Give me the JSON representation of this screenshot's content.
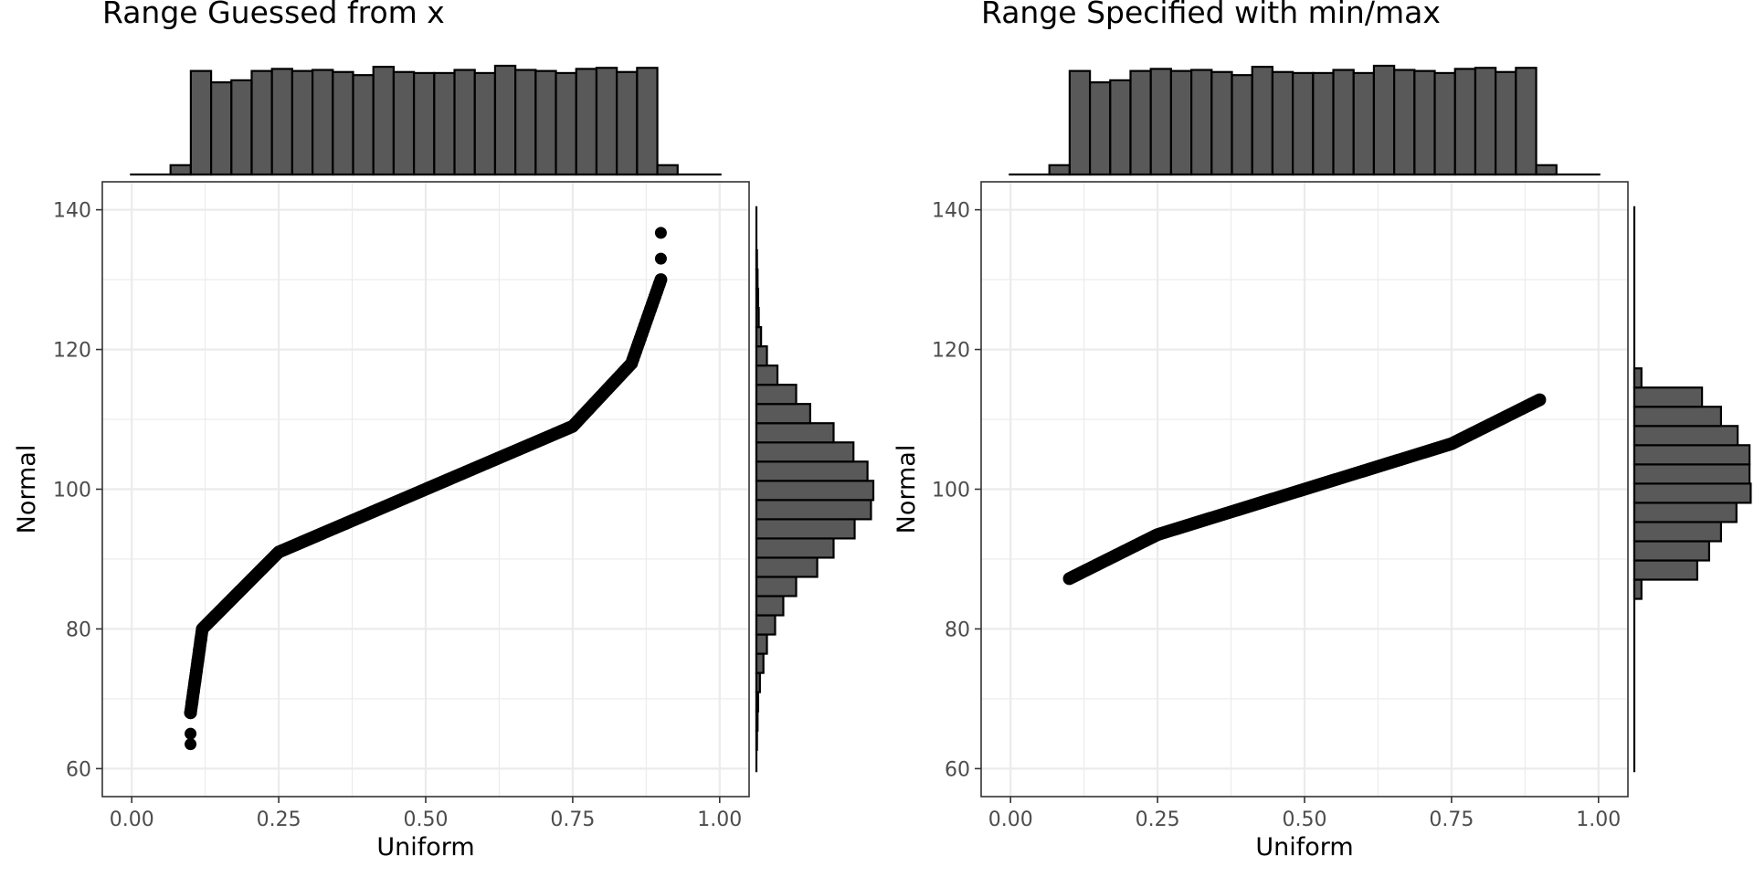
{
  "chart_data": [
    {
      "type": "scatter",
      "title": "Range Guessed from x",
      "xlabel": "Uniform",
      "ylabel": "Normal",
      "xlim": [
        0.0,
        1.0
      ],
      "ylim": [
        60,
        140
      ],
      "x_ticks": [
        0.0,
        0.25,
        0.5,
        0.75,
        1.0
      ],
      "x_tick_labels": [
        "0.00",
        "0.25",
        "0.50",
        "0.75",
        "1.00"
      ],
      "y_ticks": [
        60,
        80,
        100,
        120,
        140
      ],
      "y_tick_labels": [
        "60",
        "80",
        "100",
        "120",
        "140"
      ],
      "grid": true,
      "marginal_histograms": true,
      "curve": {
        "x_min": 0.1,
        "x_max": 0.9,
        "y_points": [
          {
            "x": 0.1,
            "y": 68.0
          },
          {
            "x": 0.12,
            "y": 80.0
          },
          {
            "x": 0.25,
            "y": 91.0
          },
          {
            "x": 0.5,
            "y": 100.0
          },
          {
            "x": 0.75,
            "y": 109.0
          },
          {
            "x": 0.85,
            "y": 118.0
          },
          {
            "x": 0.9,
            "y": 130.0
          }
        ],
        "outliers": [
          {
            "x": 0.1,
            "y": 63.5
          },
          {
            "x": 0.1,
            "y": 65.0
          },
          {
            "x": 0.9,
            "y": 133.0
          },
          {
            "x": 0.9,
            "y": 136.7
          }
        ]
      },
      "x_histogram": {
        "bin_left": 0.066,
        "bin_width": 0.0345,
        "counts": [
          0.09,
          1.0,
          0.89,
          0.91,
          1.0,
          1.02,
          1.0,
          1.01,
          0.99,
          0.96,
          1.04,
          0.99,
          0.98,
          0.98,
          1.01,
          0.98,
          1.05,
          1.01,
          1.0,
          0.98,
          1.02,
          1.03,
          0.99,
          1.03,
          0.09
        ]
      },
      "y_histogram": {
        "bin_bottom": 62.7,
        "bin_width": 2.75,
        "counts": [
          0.005,
          0.01,
          0.015,
          0.03,
          0.06,
          0.09,
          0.16,
          0.23,
          0.34,
          0.52,
          0.66,
          0.84,
          0.98,
          1.0,
          0.95,
          0.83,
          0.66,
          0.46,
          0.34,
          0.18,
          0.09,
          0.04,
          0.02,
          0.015,
          0.01,
          0.005
        ]
      }
    },
    {
      "type": "scatter",
      "title": "Range Specified with min/max",
      "xlabel": "Uniform",
      "ylabel": "Normal",
      "xlim": [
        0.0,
        1.0
      ],
      "ylim": [
        60,
        140
      ],
      "x_ticks": [
        0.0,
        0.25,
        0.5,
        0.75,
        1.0
      ],
      "x_tick_labels": [
        "0.00",
        "0.25",
        "0.50",
        "0.75",
        "1.00"
      ],
      "y_ticks": [
        60,
        80,
        100,
        120,
        140
      ],
      "y_tick_labels": [
        "60",
        "80",
        "100",
        "120",
        "140"
      ],
      "grid": true,
      "marginal_histograms": true,
      "curve": {
        "x_min": 0.1,
        "x_max": 0.9,
        "y_points": [
          {
            "x": 0.1,
            "y": 87.2
          },
          {
            "x": 0.25,
            "y": 93.5
          },
          {
            "x": 0.5,
            "y": 100.0
          },
          {
            "x": 0.75,
            "y": 106.5
          },
          {
            "x": 0.9,
            "y": 112.8
          }
        ],
        "outliers": []
      },
      "x_histogram": {
        "bin_left": 0.066,
        "bin_width": 0.0345,
        "counts": [
          0.09,
          1.0,
          0.89,
          0.91,
          1.0,
          1.02,
          1.0,
          1.01,
          0.99,
          0.96,
          1.04,
          0.99,
          0.98,
          0.98,
          1.01,
          0.98,
          1.05,
          1.01,
          1.0,
          0.98,
          1.02,
          1.03,
          0.99,
          1.03,
          0.09
        ]
      },
      "y_histogram": {
        "bin_bottom": 84.3,
        "bin_width": 2.75,
        "counts": [
          0.06,
          0.53,
          0.63,
          0.73,
          0.86,
          0.98,
          0.97,
          0.97,
          0.87,
          0.73,
          0.57,
          0.06
        ]
      }
    }
  ]
}
